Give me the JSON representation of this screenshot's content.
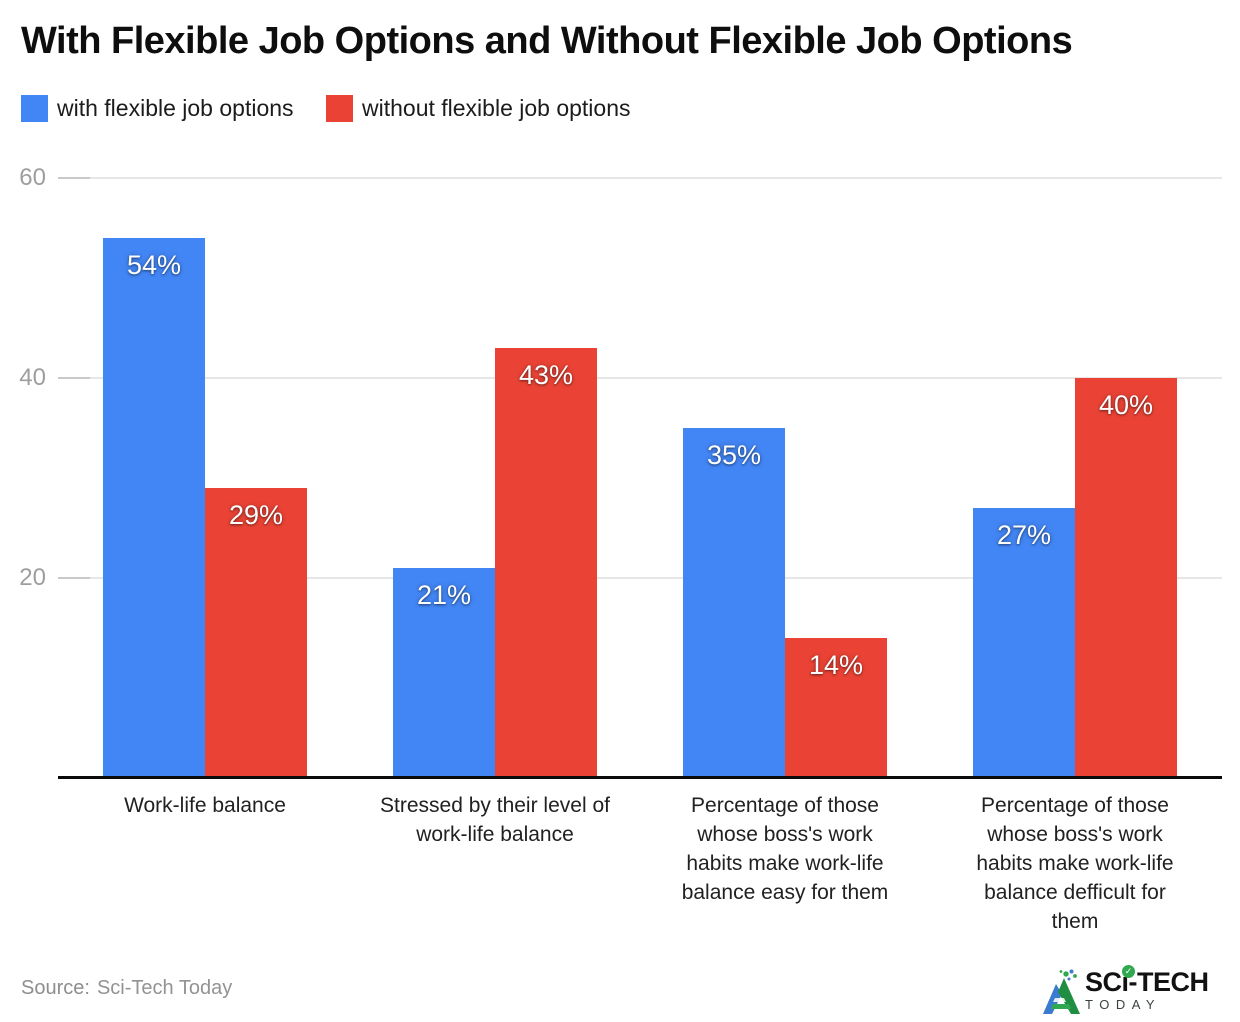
{
  "title": "With Flexible Job Options and Without Flexible Job Options",
  "legend": [
    {
      "label": "with flexible job options",
      "color": "#4285F4"
    },
    {
      "label": "without flexible job options",
      "color": "#EA4335"
    }
  ],
  "chart_data": {
    "type": "bar",
    "title": "With Flexible Job Options and Without Flexible Job Options",
    "categories": [
      "Work-life balance",
      "Stressed by their level of\nwork-life balance",
      "Percentage of those\nwhose boss's work\nhabits make work-life\nbalance easy for them",
      "Percentage of those\nwhose boss's work\nhabits make work-life\nbalance defficult for\nthem"
    ],
    "series": [
      {
        "name": "with flexible job options",
        "color": "#4285F4",
        "values": [
          54,
          21,
          35,
          27
        ]
      },
      {
        "name": "without flexible job options",
        "color": "#EA4335",
        "values": [
          29,
          43,
          14,
          40
        ]
      }
    ],
    "value_suffix": "%",
    "yticks": [
      20,
      40,
      60
    ],
    "ylim": [
      0,
      62
    ],
    "grid": true,
    "legend_position": "top"
  },
  "footer": {
    "source_label": "Source:",
    "source_name": "Sci-Tech Today",
    "logo_text": "SCi-TECH",
    "logo_subtext": "TODAY",
    "logo_check": "✓"
  }
}
